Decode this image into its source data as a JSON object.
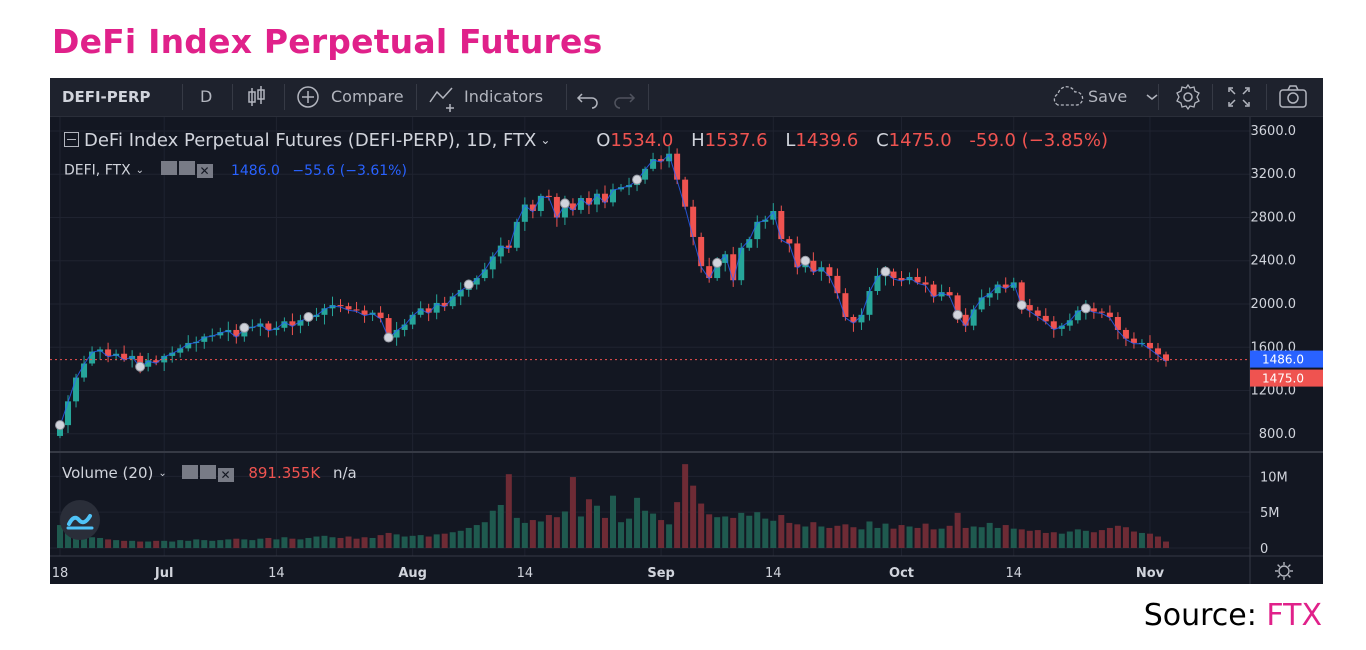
{
  "page": {
    "title": "DeFi Index Perpetual Futures",
    "source_label": "Source:",
    "source_name": "FTX"
  },
  "toolbar": {
    "symbol": "DEFI-PERP",
    "interval": "D",
    "compare": "Compare",
    "indicators": "Indicators",
    "save": "Save",
    "icons": [
      "candles-icon",
      "plus-circle-icon",
      "indicators-icon",
      "undo-icon",
      "redo-icon",
      "cloud-icon",
      "chevron-down-icon",
      "gear-icon",
      "fullscreen-icon",
      "camera-icon"
    ]
  },
  "legend": {
    "main_title": "DeFi Index Perpetual Futures (DEFI-PERP), 1D, FTX",
    "o_label": "O",
    "o_value": "1534.0",
    "h_label": "H",
    "h_value": "1537.6",
    "l_label": "L",
    "l_value": "1439.6",
    "c_label": "C",
    "c_value": "1475.0",
    "change": "-59.0 (−3.85%)",
    "compare_symbol": "DEFI, FTX",
    "compare_value": "1486.0",
    "compare_change": "−55.6 (−3.61%)",
    "volume_label": "Volume (20)",
    "volume_value": "891.355K",
    "volume_ma": "n/a"
  },
  "colors": {
    "up": "#26a69a",
    "down": "#ef5350",
    "compare_line": "#2962ff",
    "background": "#131722",
    "title": "#e0218a"
  },
  "chart_data": {
    "type": "candlestick",
    "x_tick_labels": [
      "18",
      "Jul",
      "14",
      "Aug",
      "14",
      "Sep",
      "14",
      "Oct",
      "14",
      "Nov"
    ],
    "y_ticks": [
      800,
      1200,
      1600,
      2000,
      2400,
      2800,
      3200,
      3600
    ],
    "y_tick_labels": [
      "800.0",
      "1200.0",
      "1600.0",
      "2000.0",
      "2400.0",
      "2800.0",
      "3200.0",
      "3600.0"
    ],
    "ylim": [
      650,
      3720
    ],
    "price_labels": {
      "compare": "1486.0",
      "last": "1475.0"
    },
    "volume_ticks": [
      "0",
      "5M",
      "10M"
    ],
    "volume_ylim": [
      0,
      12
    ],
    "closes": [
      880,
      1100,
      1320,
      1450,
      1560,
      1580,
      1520,
      1540,
      1490,
      1520,
      1420,
      1480,
      1460,
      1520,
      1550,
      1590,
      1640,
      1650,
      1700,
      1710,
      1740,
      1760,
      1700,
      1780,
      1790,
      1820,
      1760,
      1780,
      1840,
      1800,
      1850,
      1880,
      1900,
      1960,
      1990,
      1980,
      1950,
      1940,
      1900,
      1920,
      1870,
      1690,
      1760,
      1810,
      1900,
      1960,
      1920,
      2010,
      1980,
      2070,
      2130,
      2180,
      2240,
      2320,
      2440,
      2540,
      2520,
      2760,
      2920,
      2860,
      3000,
      2990,
      2800,
      2930,
      2870,
      2980,
      2920,
      3020,
      2940,
      3060,
      3080,
      3100,
      3150,
      3250,
      3340,
      3320,
      3390,
      3150,
      2900,
      2620,
      2350,
      2240,
      2380,
      2460,
      2220,
      2520,
      2600,
      2760,
      2780,
      2860,
      2600,
      2560,
      2340,
      2400,
      2300,
      2340,
      2260,
      2100,
      1880,
      1830,
      1900,
      2120,
      2260,
      2300,
      2240,
      2220,
      2250,
      2200,
      2180,
      2070,
      2110,
      2080,
      1900,
      1800,
      1950,
      2060,
      2100,
      2180,
      2150,
      2200,
      1990,
      1940,
      1890,
      1840,
      1770,
      1800,
      1850,
      1940,
      1960,
      1930,
      1920,
      1880,
      1760,
      1680,
      1640,
      1640,
      1590,
      1534,
      1475
    ],
    "volume_values": [
      3.2,
      2.4,
      2.1,
      1.8,
      1.5,
      1.4,
      1.2,
      1.1,
      1.0,
      1.0,
      0.9,
      0.9,
      1.0,
      1.0,
      0.9,
      1.1,
      1.0,
      1.2,
      1.1,
      1.0,
      1.1,
      1.2,
      1.3,
      1.2,
      1.1,
      1.3,
      1.4,
      1.2,
      1.5,
      1.3,
      1.2,
      1.4,
      1.6,
      1.7,
      1.5,
      1.4,
      1.6,
      1.3,
      1.5,
      1.4,
      1.8,
      2.1,
      1.9,
      1.6,
      1.7,
      1.8,
      1.6,
      1.9,
      2.0,
      2.2,
      2.4,
      2.8,
      3.2,
      3.6,
      5.2,
      6.0,
      10.3,
      4.2,
      3.5,
      3.9,
      3.7,
      4.6,
      4.3,
      5.1,
      9.9,
      4.4,
      6.8,
      5.9,
      4.2,
      7.3,
      3.6,
      4.1,
      7.0,
      5.2,
      4.8,
      3.9,
      3.3,
      6.4,
      11.7,
      8.7,
      6.2,
      4.7,
      4.3,
      4.4,
      4.2,
      4.9,
      4.5,
      5.0,
      4.1,
      3.8,
      4.6,
      3.5,
      3.3,
      3.0,
      3.6,
      3.0,
      2.8,
      3.1,
      3.3,
      2.9,
      2.6,
      3.7,
      2.8,
      3.4,
      2.7,
      3.2,
      3.0,
      2.8,
      3.4,
      2.6,
      2.7,
      3.1,
      4.9,
      2.8,
      3.0,
      2.9,
      3.5,
      2.8,
      3.2,
      2.7,
      2.6,
      2.4,
      2.5,
      2.1,
      2.2,
      2.0,
      2.3,
      2.6,
      2.4,
      2.2,
      2.5,
      2.8,
      3.1,
      2.9,
      2.3,
      2.1,
      2.0,
      1.6,
      0.9
    ]
  }
}
